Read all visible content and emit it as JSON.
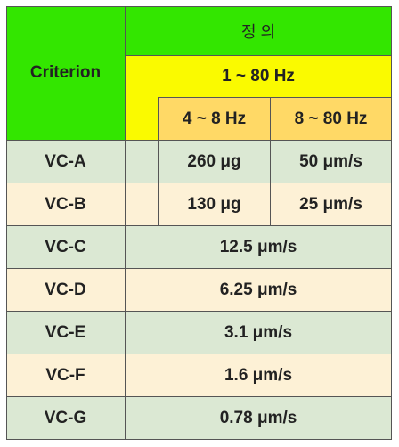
{
  "header": {
    "criterion": "Criterion",
    "definition": "정 의",
    "range_all": "1 ~ 80 Hz",
    "range_low": "4 ~ 8 Hz",
    "range_high": "8 ~ 80 Hz"
  },
  "rows": [
    {
      "name": "VC-A",
      "low": "260 μg",
      "high": "50 μm/s"
    },
    {
      "name": "VC-B",
      "low": "130 μg",
      "high": "25 μm/s"
    },
    {
      "name": "VC-C",
      "value": "12.5 μm/s"
    },
    {
      "name": "VC-D",
      "value": "6.25 μm/s"
    },
    {
      "name": "VC-E",
      "value": "3.1 μm/s"
    },
    {
      "name": "VC-F",
      "value": "1.6 μm/s"
    },
    {
      "name": "VC-G",
      "value": "0.78 μm/s"
    }
  ],
  "colors": {
    "header_green": "#33e600",
    "header_yellow": "#fafa00",
    "header_orange": "#ffd966",
    "row_green": "#dbe8d3",
    "row_cream": "#fdf1d6"
  }
}
